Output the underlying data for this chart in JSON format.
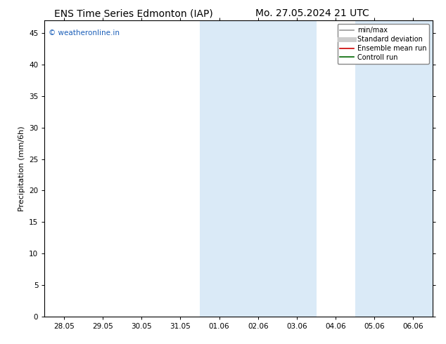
{
  "title_left": "ENS Time Series Edmonton (IAP)",
  "title_right": "Mo. 27.05.2024 21 UTC",
  "ylabel": "Precipitation (mm/6h)",
  "xlim_min": -0.5,
  "xlim_max": 9.5,
  "ylim_min": 0,
  "ylim_max": 47,
  "yticks": [
    0,
    5,
    10,
    15,
    20,
    25,
    30,
    35,
    40,
    45
  ],
  "xtick_labels": [
    "28.05",
    "29.05",
    "30.05",
    "31.05",
    "01.06",
    "02.06",
    "03.06",
    "04.06",
    "05.06",
    "06.06"
  ],
  "xtick_positions": [
    0,
    1,
    2,
    3,
    4,
    5,
    6,
    7,
    8,
    9
  ],
  "shaded_regions": [
    {
      "xmin": 3.5,
      "xmax": 4.5,
      "color": "#daeaf7"
    },
    {
      "xmin": 4.5,
      "xmax": 6.5,
      "color": "#daeaf7"
    },
    {
      "xmin": 7.5,
      "xmax": 8.5,
      "color": "#daeaf7"
    },
    {
      "xmin": 8.5,
      "xmax": 9.5,
      "color": "#daeaf7"
    }
  ],
  "watermark_text": "© weatheronline.in",
  "watermark_color": "#1a5eb8",
  "legend_entries": [
    {
      "label": "min/max",
      "color": "#999999",
      "lw": 1.2,
      "style": "solid"
    },
    {
      "label": "Standard deviation",
      "color": "#cccccc",
      "lw": 5,
      "style": "solid"
    },
    {
      "label": "Ensemble mean run",
      "color": "#cc0000",
      "lw": 1.2,
      "style": "solid"
    },
    {
      "label": "Controll run",
      "color": "#006600",
      "lw": 1.2,
      "style": "solid"
    }
  ],
  "bg_color": "#ffffff",
  "plot_bg_color": "#ffffff",
  "spine_color": "#000000",
  "tick_color": "#000000",
  "title_fontsize": 10,
  "label_fontsize": 8,
  "tick_fontsize": 7.5,
  "legend_fontsize": 7
}
